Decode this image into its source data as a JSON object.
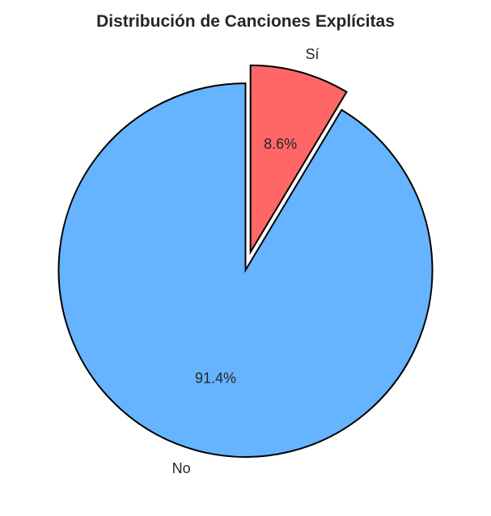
{
  "chart_data": {
    "type": "pie",
    "title": "Distribución de Canciones Explícitas",
    "categories": [
      "No",
      "Sí"
    ],
    "values": [
      91.4,
      8.6
    ],
    "labels": [
      "No",
      "Sí"
    ],
    "percent_labels": [
      "91.4%",
      "8.6%"
    ],
    "colors": [
      "#66b3ff",
      "#ff6666"
    ],
    "explode": [
      0,
      0.1
    ],
    "start_angle": 90,
    "direction": "counterclockwise",
    "legend": false
  }
}
